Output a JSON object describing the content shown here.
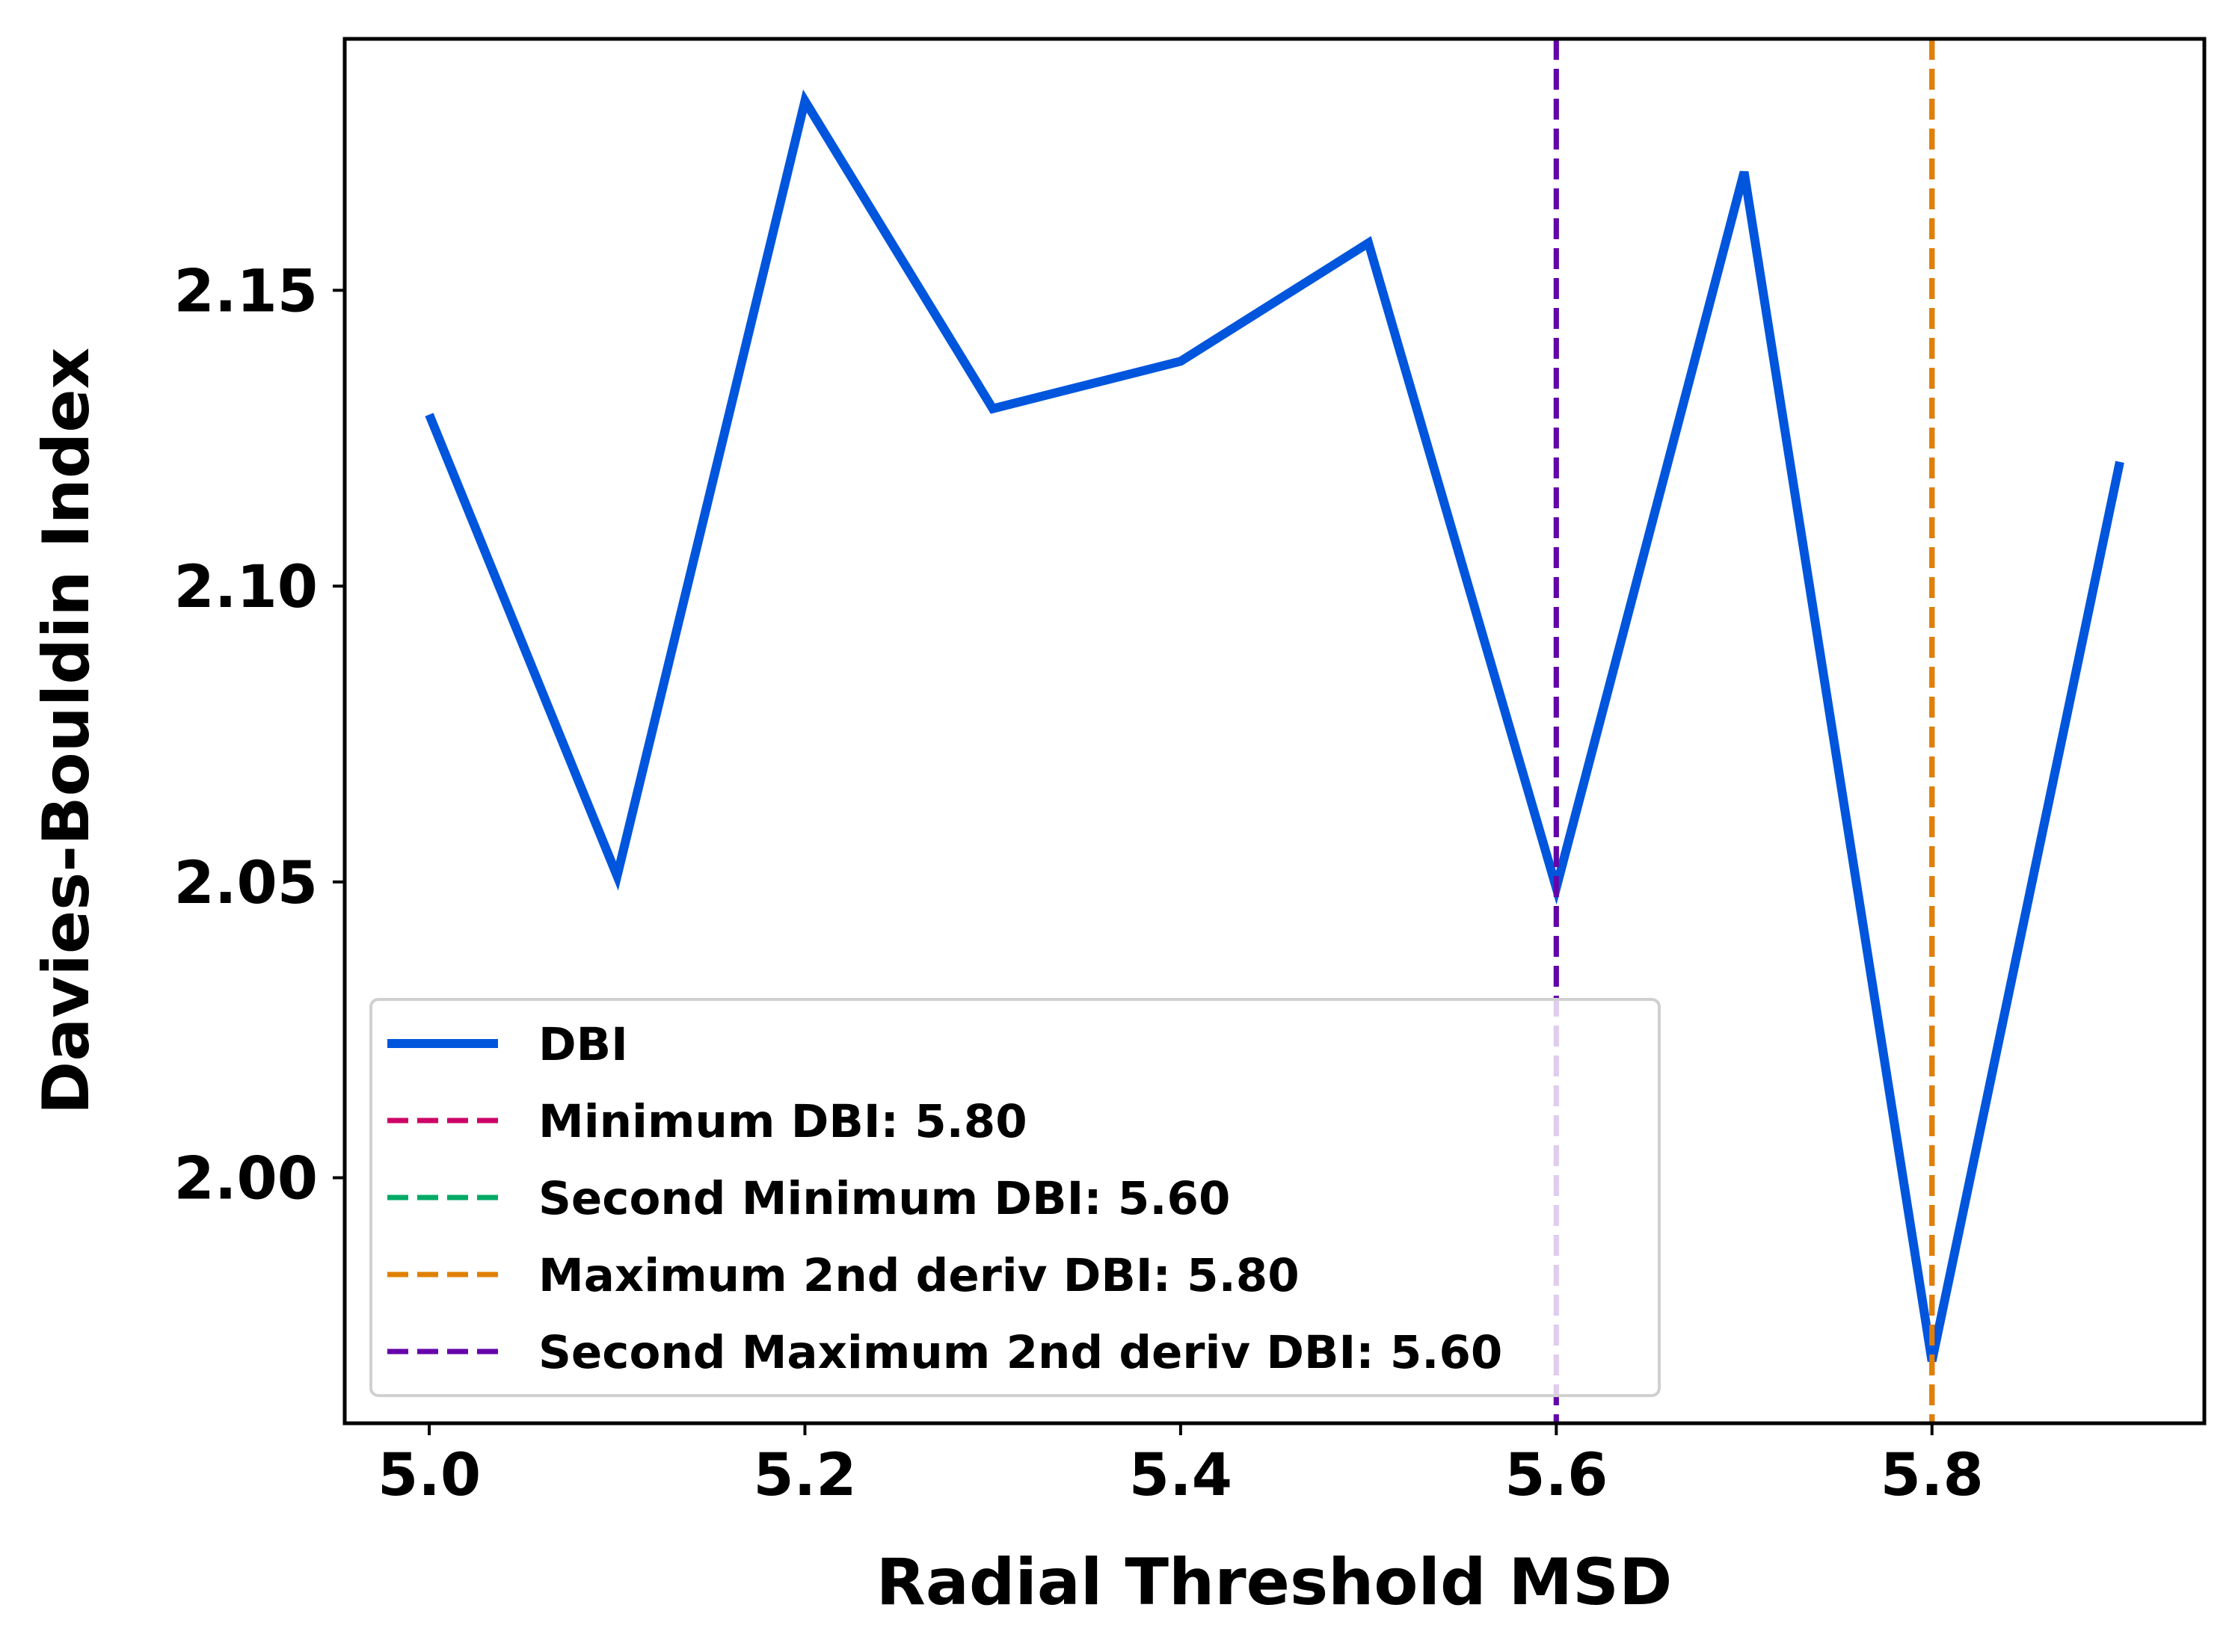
{
  "chart_data": {
    "type": "line",
    "xlabel": "Radial Threshold MSD",
    "ylabel": "Davies-Bouldin Index",
    "xlim": [
      4.955,
      5.945
    ],
    "ylim": [
      1.9585,
      2.1925
    ],
    "xticks": [
      "5.0",
      "5.2",
      "5.4",
      "5.6",
      "5.8"
    ],
    "xtick_values": [
      5.0,
      5.2,
      5.4,
      5.6,
      5.8
    ],
    "yticks": [
      "2.00",
      "2.05",
      "2.10",
      "2.15"
    ],
    "ytick_values": [
      2.0,
      2.05,
      2.1,
      2.15
    ],
    "grid": false,
    "legend_position": "lower-left",
    "series": [
      {
        "name": "DBI",
        "color": "#0055dd",
        "x": [
          5.0,
          5.1,
          5.2,
          5.3,
          5.4,
          5.5,
          5.6,
          5.7,
          5.8,
          5.9
        ],
        "y": [
          2.129,
          2.051,
          2.182,
          2.13,
          2.138,
          2.158,
          2.049,
          2.17,
          1.969,
          2.121
        ]
      }
    ],
    "vlines": [
      {
        "name": "Minimum DBI: 5.80",
        "x": 5.8,
        "color": "#cc0066"
      },
      {
        "name": "Second Minimum DBI: 5.60",
        "x": 5.6,
        "color": "#00aa66"
      },
      {
        "name": "Maximum 2nd deriv DBI: 5.80",
        "x": 5.8,
        "color": "#e08000"
      },
      {
        "name": "Second Maximum 2nd deriv DBI: 5.60",
        "x": 5.6,
        "color": "#6600aa"
      }
    ]
  }
}
